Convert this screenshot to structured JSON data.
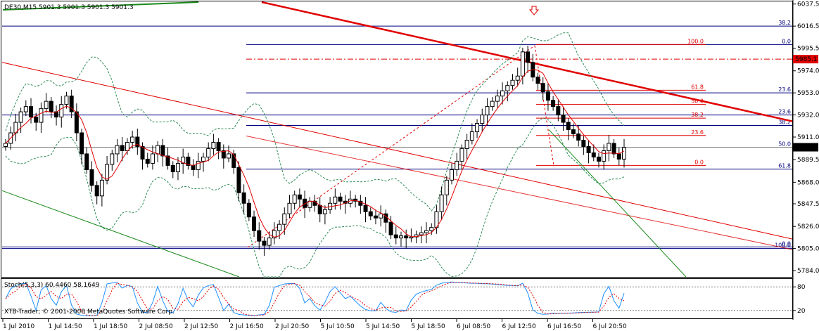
{
  "app": {
    "copyright": "XTB-Trader, © 2001-2008 MetaQuotes Software Corp."
  },
  "colors": {
    "background": "#ffffff",
    "grid": "#c0c0c0",
    "candle": "#000000",
    "ma_red": "#e00000",
    "bollinger": "#2e8b57",
    "trend_red": "#e00000",
    "trend_green": "#1a8a1a",
    "level_blue": "#00007f",
    "fib_red": "#e00000",
    "stoch_main": "#1e90ff",
    "stoch_signal": "#e00000",
    "price_box": "#000000",
    "alert_box": "#e00000"
  },
  "chart_data": [
    {
      "type": "candlestick",
      "title": "DE30,M15  5901.3 5901.3 5901.3 5901.3",
      "symbol": "DE30",
      "timeframe": "M15",
      "ohlc_header": "5901.3 5901.3 5901.3 5901.3",
      "ylim": [
        5778,
        6040
      ],
      "y_ticks": [
        "6037.5",
        "6016.5",
        "5995.5",
        "5974.0",
        "5953.0",
        "5932.0",
        "5911.0",
        "5889.5",
        "5868.0",
        "5847.5",
        "5826.0",
        "5805.0",
        "5784.0"
      ],
      "x_ticks": [
        "1 Jul 2010",
        "1 Jul 14:50",
        "1 Jul 18:50",
        "2 Jul 08:50",
        "2 Jul 12:50",
        "2 Jul 16:50",
        "2 Jul 20:50",
        "5 Jul 10:50",
        "5 Jul 14:50",
        "5 Jul 18:50",
        "6 Jul 08:50",
        "6 Jul 12:50",
        "6 Jul 16:50",
        "6 Jul 20:50"
      ],
      "current_price": "5901.3",
      "alert_price": "5985.1",
      "close_series": [
        5905,
        5915,
        5925,
        5935,
        5940,
        5930,
        5925,
        5938,
        5945,
        5935,
        5930,
        5942,
        5950,
        5935,
        5915,
        5895,
        5880,
        5865,
        5855,
        5870,
        5885,
        5895,
        5903,
        5898,
        5906,
        5911,
        5902,
        5890,
        5886,
        5895,
        5903,
        5893,
        5884,
        5878,
        5886,
        5892,
        5884,
        5880,
        5888,
        5892,
        5900,
        5906,
        5898,
        5891,
        5895,
        5882,
        5858,
        5848,
        5835,
        5822,
        5812,
        5808,
        5815,
        5822,
        5828,
        5838,
        5848,
        5856,
        5852,
        5844,
        5850,
        5846,
        5838,
        5842,
        5848,
        5854,
        5850,
        5848,
        5852,
        5850,
        5846,
        5840,
        5836,
        5834,
        5838,
        5830,
        5818,
        5815,
        5817,
        5815,
        5816,
        5818,
        5820,
        5822,
        5825,
        5840,
        5856,
        5870,
        5880,
        5888,
        5900,
        5908,
        5916,
        5924,
        5932,
        5940,
        5945,
        5950,
        5955,
        5960,
        5965,
        5969,
        5992,
        5982,
        5968,
        5962,
        5954,
        5946,
        5940,
        5932,
        5925,
        5918,
        5914,
        5908,
        5902,
        5896,
        5892,
        5888,
        5898,
        5905,
        5895,
        5890,
        5901
      ],
      "fib_levels_blue": [
        {
          "label": "38.2",
          "value": 6016.5
        },
        {
          "label": "0.0",
          "value": 5999.0
        },
        {
          "label": "23.6",
          "value": 5953.0
        },
        {
          "label": "23.6",
          "value": 5932.0
        },
        {
          "label": "38.2",
          "value": 5922.0
        },
        {
          "label": "50.0",
          "value": 5901.3
        },
        {
          "label": "61.8",
          "value": 5880.5
        },
        {
          "label": "0.0",
          "value": 5806.5
        },
        {
          "label": "100.0",
          "value": 5805.0
        }
      ],
      "fib_levels_red": [
        {
          "label": "100.0",
          "value": 5999.0
        },
        {
          "label": "61.8",
          "value": 5955.5
        },
        {
          "label": "50.0",
          "value": 5942.0
        },
        {
          "label": "38.2",
          "value": 5929.0
        },
        {
          "label": "23.6",
          "value": 5912.5
        },
        {
          "label": "0.0",
          "value": 5884.0
        }
      ],
      "grid": false
    },
    {
      "type": "line",
      "title": "Stoch(5,3,3) 60.4460 58.1649",
      "indicator": "Stoch(5,3,3)",
      "main_value": "60.4460",
      "signal_value": "58.1649",
      "ylim": [
        0,
        100
      ],
      "y_ticks": [
        "80",
        "20"
      ],
      "levels": [
        80,
        20
      ]
    }
  ]
}
